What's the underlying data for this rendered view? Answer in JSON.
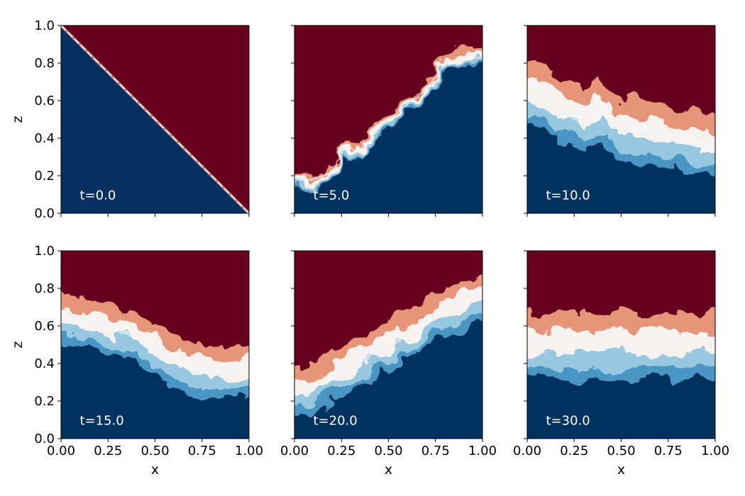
{
  "colors": {
    "upper_fluid": "#67001f",
    "lower_fluid": "#053061",
    "mixed_hot": "#f4a582",
    "mixed_mid": "#f7f7f7",
    "mixed_cold": "#92c5de",
    "annotation_text": "#ffffff"
  },
  "chart_data": [
    {
      "type": "heatmap",
      "panel": "t0",
      "time": 0.0,
      "label": "t=0.0",
      "xlabel": "",
      "ylabel": "z",
      "xlim": [
        0,
        1
      ],
      "ylim": [
        0,
        1
      ],
      "xticks": [
        "0.00",
        "0.25",
        "0.50",
        "0.75",
        "1.00"
      ],
      "yticks": [
        "0.0",
        "0.2",
        "0.4",
        "0.6",
        "0.8",
        "1.0"
      ],
      "interface": {
        "x": [
          0.0,
          1.0
        ],
        "z": [
          1.0,
          0.0
        ]
      },
      "mixing_halfwidth": 0.0
    },
    {
      "type": "heatmap",
      "panel": "t5",
      "time": 5.0,
      "label": "t=5.0",
      "xlabel": "",
      "ylabel": "",
      "xlim": [
        0,
        1
      ],
      "ylim": [
        0,
        1
      ],
      "xticks": [
        "0.00",
        "0.25",
        "0.50",
        "0.75",
        "1.00"
      ],
      "yticks": [
        "0.0",
        "0.2",
        "0.4",
        "0.6",
        "0.8",
        "1.0"
      ],
      "interface": {
        "x": [
          0.0,
          0.1,
          0.2,
          0.27,
          0.35,
          0.45,
          0.55,
          0.65,
          0.72,
          0.8,
          0.9,
          1.0
        ],
        "z": [
          0.18,
          0.18,
          0.22,
          0.35,
          0.33,
          0.45,
          0.55,
          0.62,
          0.68,
          0.8,
          0.82,
          0.83
        ]
      },
      "mixing_halfwidth": 0.04
    },
    {
      "type": "heatmap",
      "panel": "t10",
      "time": 10.0,
      "label": "t=10.0",
      "xlabel": "",
      "ylabel": "",
      "xlim": [
        0,
        1
      ],
      "ylim": [
        0,
        1
      ],
      "xticks": [
        "0.00",
        "0.25",
        "0.50",
        "0.75",
        "1.00"
      ],
      "yticks": [
        "0.0",
        "0.2",
        "0.4",
        "0.6",
        "0.8",
        "1.0"
      ],
      "interface": {
        "x": [
          0.0,
          0.1,
          0.2,
          0.3,
          0.4,
          0.5,
          0.6,
          0.7,
          0.8,
          0.9,
          1.0
        ],
        "z": [
          0.64,
          0.62,
          0.55,
          0.5,
          0.55,
          0.45,
          0.45,
          0.42,
          0.4,
          0.38,
          0.36
        ]
      },
      "mixing_halfwidth": 0.16
    },
    {
      "type": "heatmap",
      "panel": "t15",
      "time": 15.0,
      "label": "t=15.0",
      "xlabel": "x",
      "ylabel": "z",
      "xlim": [
        0,
        1
      ],
      "ylim": [
        0,
        1
      ],
      "xticks": [
        "0.00",
        "0.25",
        "0.50",
        "0.75",
        "1.00"
      ],
      "yticks": [
        "0.0",
        "0.2",
        "0.4",
        "0.6",
        "0.8",
        "1.0"
      ],
      "interface": {
        "x": [
          0.0,
          0.1,
          0.2,
          0.3,
          0.4,
          0.5,
          0.6,
          0.7,
          0.8,
          0.9,
          1.0
        ],
        "z": [
          0.65,
          0.62,
          0.6,
          0.58,
          0.55,
          0.48,
          0.42,
          0.38,
          0.36,
          0.36,
          0.36
        ]
      },
      "mixing_halfwidth": 0.13
    },
    {
      "type": "heatmap",
      "panel": "t20",
      "time": 20.0,
      "label": "t=20.0",
      "xlabel": "x",
      "ylabel": "",
      "xlim": [
        0,
        1
      ],
      "ylim": [
        0,
        1
      ],
      "xticks": [
        "0.00",
        "0.25",
        "0.50",
        "0.75",
        "1.00"
      ],
      "yticks": [
        "0.0",
        "0.2",
        "0.4",
        "0.6",
        "0.8",
        "1.0"
      ],
      "interface": {
        "x": [
          0.0,
          0.1,
          0.2,
          0.3,
          0.4,
          0.5,
          0.6,
          0.7,
          0.8,
          0.9,
          1.0
        ],
        "z": [
          0.25,
          0.28,
          0.33,
          0.38,
          0.45,
          0.5,
          0.55,
          0.62,
          0.68,
          0.72,
          0.76
        ]
      },
      "mixing_halfwidth": 0.12
    },
    {
      "type": "heatmap",
      "panel": "t30",
      "time": 30.0,
      "label": "t=30.0",
      "xlabel": "x",
      "ylabel": "",
      "xlim": [
        0,
        1
      ],
      "ylim": [
        0,
        1
      ],
      "xticks": [
        "0.00",
        "0.25",
        "0.50",
        "0.75",
        "1.00"
      ],
      "yticks": [
        "0.0",
        "0.2",
        "0.4",
        "0.6",
        "0.8",
        "1.0"
      ],
      "interface": {
        "x": [
          0.0,
          0.25,
          0.5,
          0.75,
          1.0
        ],
        "z": [
          0.5,
          0.5,
          0.5,
          0.5,
          0.5
        ]
      },
      "mixing_halfwidth": 0.17
    }
  ]
}
